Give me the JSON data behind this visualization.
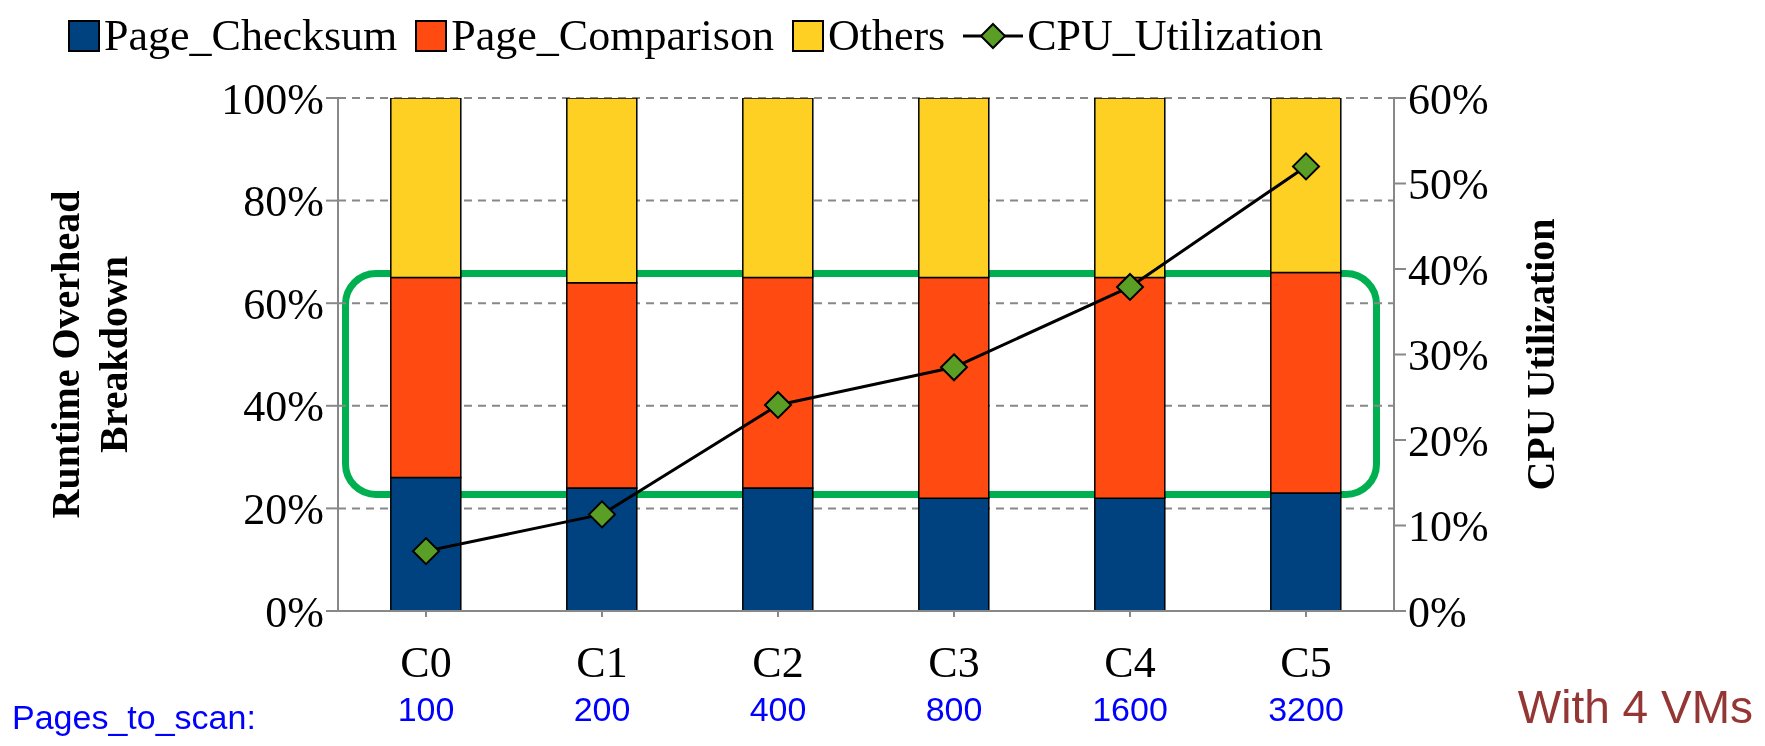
{
  "chart_data": {
    "type": "bar",
    "stacked": true,
    "categories": [
      "C0",
      "C1",
      "C2",
      "C3",
      "C4",
      "C5"
    ],
    "series": [
      {
        "name": "Page_Checksum",
        "color": "#00427f",
        "values": [
          26,
          24,
          24,
          22,
          22,
          23
        ]
      },
      {
        "name": "Page_Comparison",
        "color": "#ff4a11",
        "values": [
          39,
          40,
          41,
          43,
          43,
          43
        ]
      },
      {
        "name": "Others",
        "color": "#fdd023",
        "values": [
          35,
          36,
          35,
          35,
          35,
          34
        ]
      },
      {
        "name": "CPU_Utilization",
        "type": "line",
        "axis": "y2",
        "color": "#5b9e25",
        "values": [
          7,
          11.3,
          24.1,
          28.5,
          37.9,
          52
        ]
      }
    ],
    "ylabel": "Runtime Overhead Breakdown",
    "y2label": "CPU Utilization",
    "ylim": [
      0,
      100
    ],
    "yticks": [
      {
        "value": 0,
        "label": "0%"
      },
      {
        "value": 20,
        "label": "20%"
      },
      {
        "value": 40,
        "label": "40%"
      },
      {
        "value": 60,
        "label": "60%"
      },
      {
        "value": 80,
        "label": "80%"
      },
      {
        "value": 100,
        "label": "100%"
      }
    ],
    "y2lim": [
      0,
      60
    ],
    "y2ticks": [
      {
        "value": 0,
        "label": "0%"
      },
      {
        "value": 10,
        "label": "10%"
      },
      {
        "value": 20,
        "label": "20%"
      },
      {
        "value": 30,
        "label": "30%"
      },
      {
        "value": 40,
        "label": "40%"
      },
      {
        "value": 50,
        "label": "50%"
      },
      {
        "value": 60,
        "label": "60%"
      }
    ],
    "grid": "y",
    "legend": "top",
    "marker": "diamond",
    "annotations": [
      "Pages_to_scan:",
      "100",
      "200",
      "400",
      "800",
      "1600",
      "3200",
      "With 4 VMs"
    ]
  }
}
